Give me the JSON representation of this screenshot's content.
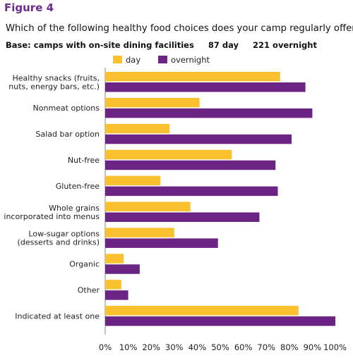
{
  "figure_label": "Figure 4",
  "question": "Which of the following healthy food choices does your camp regularly offer?",
  "base": {
    "label": "Base: camps with on-site dining facilities",
    "day": "87 day",
    "overnight": "221 overnight"
  },
  "colors": {
    "day": "#FBC02D",
    "overnight": "#6B2484"
  },
  "chart_data": {
    "type": "bar",
    "orientation": "horizontal",
    "categories": [
      [
        "Healthy snacks (fruits,",
        "nuts, energy bars, etc.)"
      ],
      [
        "Nonmeat options"
      ],
      [
        "Salad bar option"
      ],
      [
        "Nut-free"
      ],
      [
        "Gluten-free"
      ],
      [
        "Whole grains",
        "incorporated into menus"
      ],
      [
        "Low-sugar options",
        "(desserts and drinks)"
      ],
      [
        "Organic"
      ],
      [
        "Other"
      ],
      [
        "Indicated at least one"
      ]
    ],
    "series": [
      {
        "name": "day",
        "values": [
          76,
          41,
          28,
          55,
          24,
          37,
          30,
          8,
          7,
          84
        ]
      },
      {
        "name": "overnight",
        "values": [
          87,
          90,
          81,
          74,
          75,
          67,
          49,
          15,
          10,
          100
        ]
      }
    ],
    "xlim": [
      0,
      100
    ],
    "xticks": [
      "0%",
      "10%",
      "20%",
      "30%",
      "40%",
      "50%",
      "60%",
      "70%",
      "80%",
      "90%",
      "100%"
    ],
    "legend_position": "top"
  }
}
